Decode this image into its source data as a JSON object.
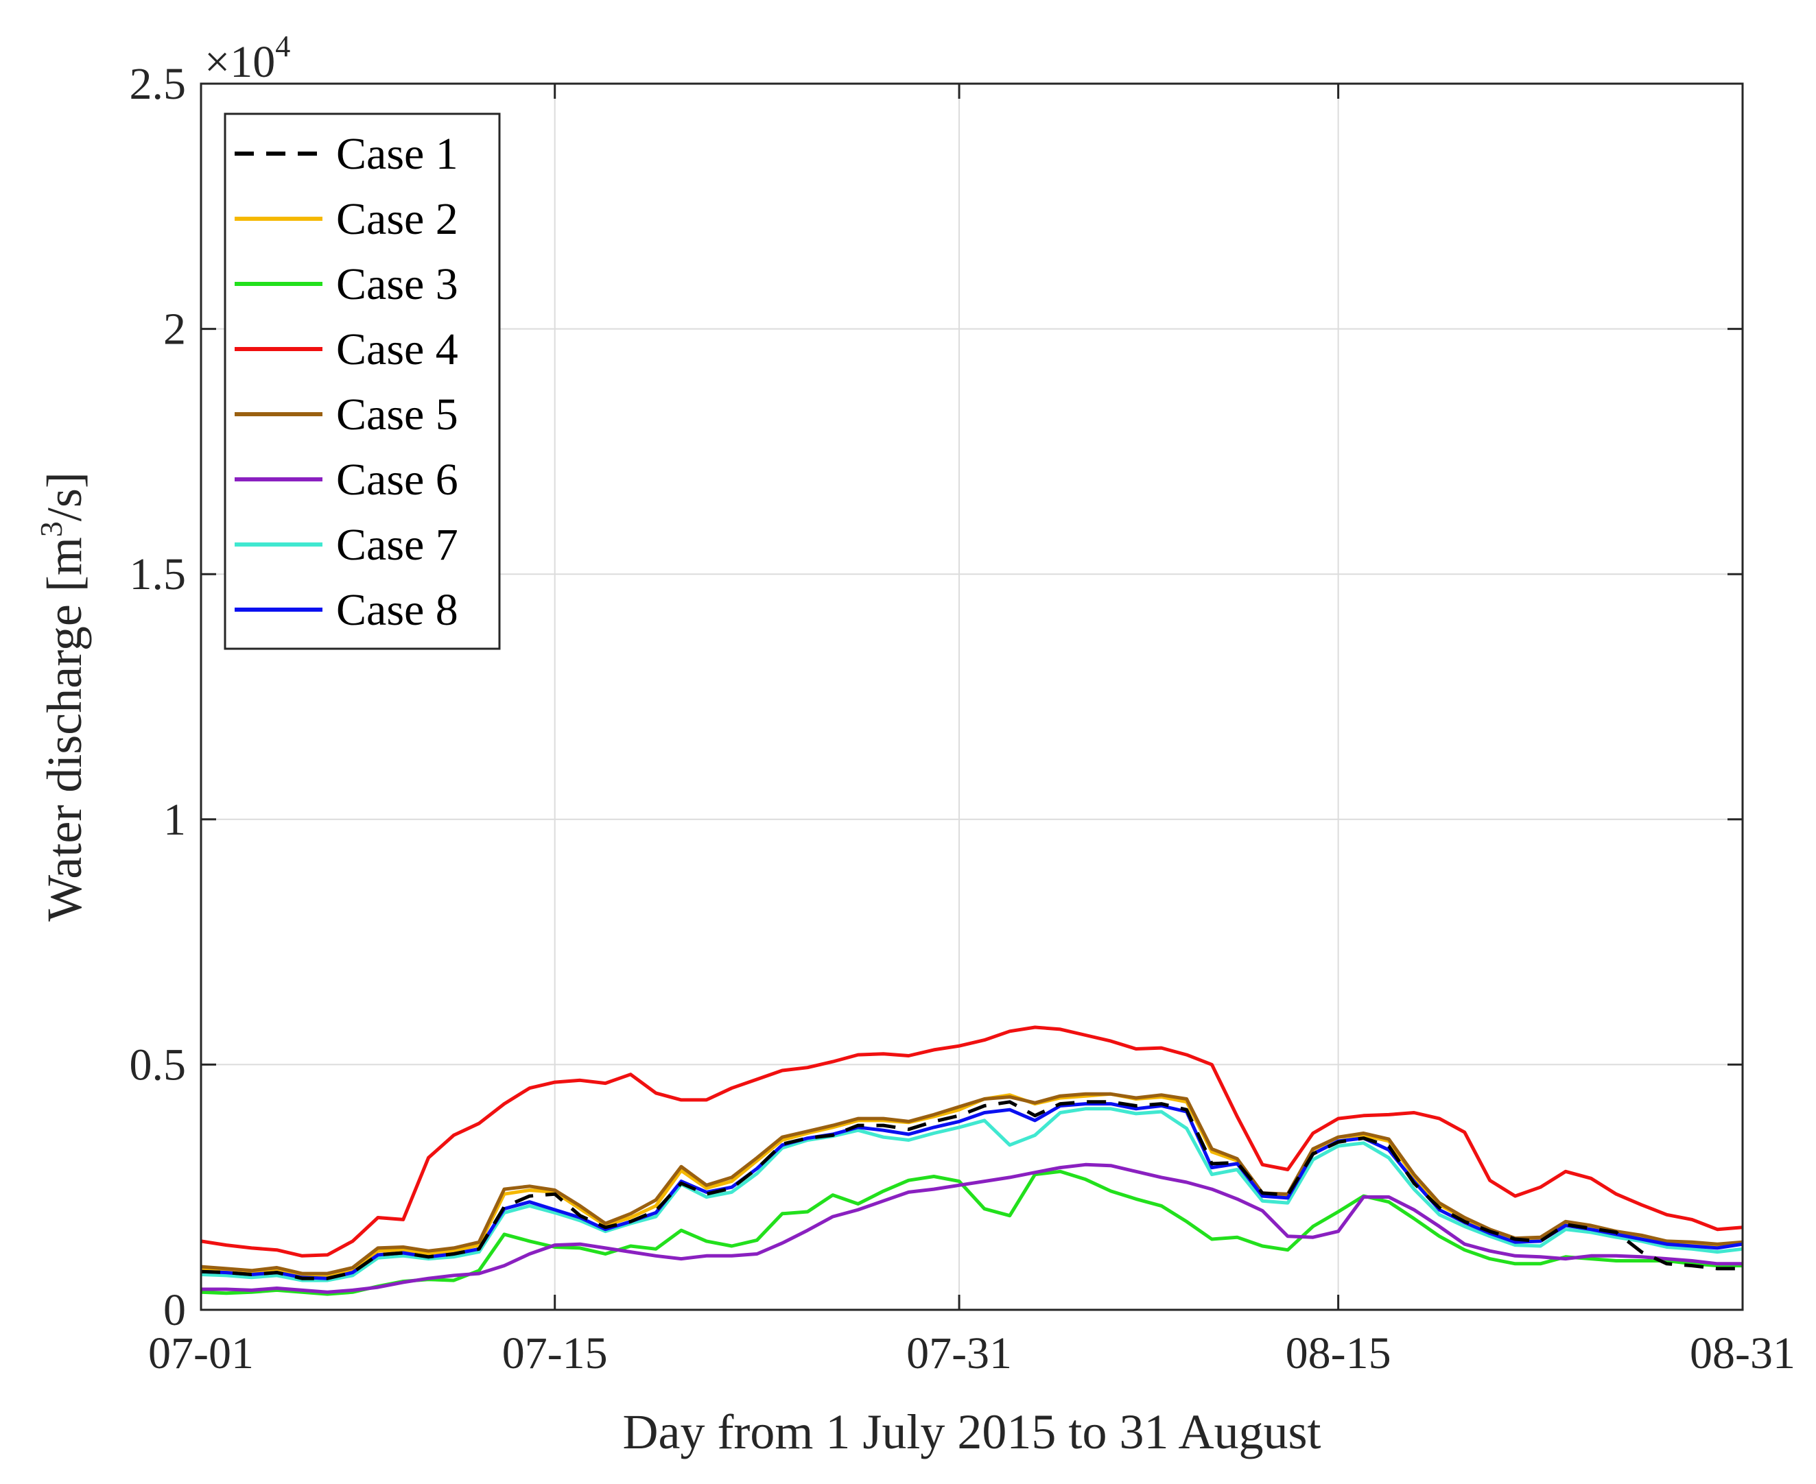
{
  "chart_data": {
    "type": "line",
    "title": "",
    "xlabel": "Day from 1 July 2015 to 31 August",
    "ylabel_main": "Water discharge [m",
    "ylabel_sup": "3",
    "ylabel_tail": "/s]",
    "y_exponent_base": "×10",
    "y_exponent_power": "4",
    "x_range_days": [
      0,
      61
    ],
    "xlim": [
      "07-01",
      "08-31"
    ],
    "ylim": [
      0,
      2.5
    ],
    "x_ticks": [
      {
        "day": 0,
        "label": "07-01"
      },
      {
        "day": 14,
        "label": "07-15"
      },
      {
        "day": 30,
        "label": "07-31"
      },
      {
        "day": 45,
        "label": "08-15"
      },
      {
        "day": 61,
        "label": "08-31"
      }
    ],
    "y_ticks": [
      {
        "value": 0,
        "label": "0"
      },
      {
        "value": 0.5,
        "label": "0.5"
      },
      {
        "value": 1,
        "label": "1"
      },
      {
        "value": 1.5,
        "label": "1.5"
      },
      {
        "value": 2,
        "label": "2"
      },
      {
        "value": 2.5,
        "label": "2.5"
      }
    ],
    "grid": true,
    "legend_position": "top-left",
    "series": [
      {
        "name": "Case 1",
        "color": "#000000",
        "dash": true,
        "values": [
          0.078,
          0.076,
          0.072,
          0.076,
          0.064,
          0.064,
          0.076,
          0.112,
          0.116,
          0.108,
          0.114,
          0.124,
          0.21,
          0.232,
          0.236,
          0.192,
          0.168,
          0.18,
          0.202,
          0.258,
          0.236,
          0.248,
          0.288,
          0.338,
          0.35,
          0.356,
          0.376,
          0.376,
          0.368,
          0.384,
          0.396,
          0.416,
          0.424,
          0.396,
          0.42,
          0.424,
          0.424,
          0.416,
          0.42,
          0.408,
          0.298,
          0.3,
          0.238,
          0.234,
          0.318,
          0.342,
          0.35,
          0.334,
          0.258,
          0.208,
          0.18,
          0.16,
          0.144,
          0.14,
          0.174,
          0.166,
          0.158,
          0.118,
          0.094,
          0.09,
          0.084,
          0.084
        ]
      },
      {
        "name": "Case 2",
        "color": "#f5b800",
        "dash": false,
        "values": [
          0.084,
          0.082,
          0.078,
          0.082,
          0.07,
          0.07,
          0.082,
          0.12,
          0.122,
          0.114,
          0.12,
          0.132,
          0.236,
          0.244,
          0.24,
          0.206,
          0.172,
          0.188,
          0.212,
          0.284,
          0.248,
          0.262,
          0.304,
          0.346,
          0.36,
          0.372,
          0.386,
          0.386,
          0.382,
          0.394,
          0.408,
          0.43,
          0.438,
          0.42,
          0.432,
          0.436,
          0.44,
          0.43,
          0.434,
          0.424,
          0.322,
          0.304,
          0.236,
          0.232,
          0.326,
          0.352,
          0.356,
          0.344,
          0.272,
          0.214,
          0.186,
          0.162,
          0.144,
          0.146,
          0.178,
          0.17,
          0.16,
          0.15,
          0.138,
          0.136,
          0.13,
          0.136
        ]
      },
      {
        "name": "Case 3",
        "color": "#22e01c",
        "dash": false,
        "values": [
          0.036,
          0.034,
          0.036,
          0.04,
          0.036,
          0.032,
          0.036,
          0.048,
          0.058,
          0.062,
          0.06,
          0.08,
          0.154,
          0.14,
          0.128,
          0.126,
          0.114,
          0.13,
          0.124,
          0.162,
          0.14,
          0.13,
          0.142,
          0.196,
          0.2,
          0.234,
          0.216,
          0.242,
          0.264,
          0.272,
          0.262,
          0.206,
          0.192,
          0.276,
          0.282,
          0.266,
          0.242,
          0.226,
          0.212,
          0.18,
          0.144,
          0.148,
          0.13,
          0.122,
          0.17,
          0.2,
          0.232,
          0.22,
          0.186,
          0.15,
          0.122,
          0.104,
          0.094,
          0.094,
          0.108,
          0.104,
          0.1,
          0.1,
          0.1,
          0.094,
          0.09,
          0.09
        ]
      },
      {
        "name": "Case 4",
        "color": "#f01010",
        "dash": false,
        "values": [
          0.14,
          0.132,
          0.126,
          0.122,
          0.11,
          0.112,
          0.14,
          0.188,
          0.184,
          0.31,
          0.356,
          0.38,
          0.42,
          0.452,
          0.464,
          0.468,
          0.462,
          0.48,
          0.442,
          0.428,
          0.428,
          0.452,
          0.47,
          0.488,
          0.494,
          0.506,
          0.52,
          0.522,
          0.518,
          0.53,
          0.538,
          0.55,
          0.568,
          0.576,
          0.572,
          0.56,
          0.548,
          0.532,
          0.534,
          0.52,
          0.5,
          0.394,
          0.296,
          0.286,
          0.36,
          0.39,
          0.396,
          0.398,
          0.402,
          0.39,
          0.362,
          0.264,
          0.232,
          0.25,
          0.282,
          0.268,
          0.236,
          0.214,
          0.194,
          0.184,
          0.164,
          0.168
        ]
      },
      {
        "name": "Case 5",
        "color": "#9a6010",
        "dash": false,
        "values": [
          0.088,
          0.084,
          0.08,
          0.086,
          0.074,
          0.074,
          0.086,
          0.126,
          0.128,
          0.12,
          0.126,
          0.138,
          0.246,
          0.252,
          0.244,
          0.212,
          0.176,
          0.196,
          0.224,
          0.292,
          0.254,
          0.27,
          0.31,
          0.352,
          0.364,
          0.376,
          0.39,
          0.39,
          0.384,
          0.398,
          0.414,
          0.43,
          0.434,
          0.422,
          0.436,
          0.44,
          0.44,
          0.432,
          0.438,
          0.43,
          0.328,
          0.308,
          0.238,
          0.236,
          0.328,
          0.352,
          0.36,
          0.348,
          0.276,
          0.218,
          0.188,
          0.164,
          0.146,
          0.148,
          0.18,
          0.172,
          0.16,
          0.152,
          0.14,
          0.138,
          0.134,
          0.138
        ]
      },
      {
        "name": "Case 6",
        "color": "#8a20c0",
        "dash": false,
        "values": [
          0.042,
          0.042,
          0.04,
          0.044,
          0.04,
          0.036,
          0.04,
          0.046,
          0.056,
          0.064,
          0.07,
          0.074,
          0.09,
          0.114,
          0.132,
          0.134,
          0.126,
          0.118,
          0.11,
          0.104,
          0.11,
          0.11,
          0.114,
          0.136,
          0.162,
          0.19,
          0.204,
          0.222,
          0.24,
          0.246,
          0.254,
          0.262,
          0.27,
          0.28,
          0.29,
          0.296,
          0.294,
          0.282,
          0.27,
          0.26,
          0.246,
          0.226,
          0.202,
          0.15,
          0.148,
          0.16,
          0.23,
          0.23,
          0.204,
          0.17,
          0.134,
          0.12,
          0.11,
          0.108,
          0.104,
          0.11,
          0.11,
          0.108,
          0.104,
          0.1,
          0.094,
          0.094
        ]
      },
      {
        "name": "Case 7",
        "color": "#40e8d0",
        "dash": false,
        "values": [
          0.072,
          0.07,
          0.066,
          0.07,
          0.06,
          0.06,
          0.07,
          0.106,
          0.11,
          0.104,
          0.108,
          0.118,
          0.198,
          0.212,
          0.198,
          0.182,
          0.16,
          0.176,
          0.19,
          0.256,
          0.23,
          0.24,
          0.278,
          0.33,
          0.346,
          0.354,
          0.366,
          0.352,
          0.346,
          0.36,
          0.372,
          0.386,
          0.336,
          0.356,
          0.402,
          0.41,
          0.41,
          0.4,
          0.404,
          0.37,
          0.276,
          0.286,
          0.222,
          0.218,
          0.306,
          0.334,
          0.34,
          0.31,
          0.246,
          0.194,
          0.17,
          0.15,
          0.132,
          0.13,
          0.164,
          0.158,
          0.148,
          0.14,
          0.128,
          0.124,
          0.118,
          0.124
        ]
      },
      {
        "name": "Case 8",
        "color": "#0a10f0",
        "dash": false,
        "values": [
          0.078,
          0.076,
          0.072,
          0.076,
          0.066,
          0.064,
          0.076,
          0.112,
          0.116,
          0.108,
          0.114,
          0.124,
          0.206,
          0.22,
          0.204,
          0.188,
          0.164,
          0.18,
          0.198,
          0.262,
          0.24,
          0.25,
          0.288,
          0.336,
          0.35,
          0.358,
          0.372,
          0.366,
          0.358,
          0.372,
          0.384,
          0.402,
          0.408,
          0.386,
          0.416,
          0.42,
          0.42,
          0.41,
          0.416,
          0.404,
          0.29,
          0.298,
          0.232,
          0.228,
          0.318,
          0.344,
          0.35,
          0.326,
          0.262,
          0.204,
          0.178,
          0.156,
          0.138,
          0.14,
          0.172,
          0.164,
          0.154,
          0.144,
          0.134,
          0.13,
          0.126,
          0.134
        ]
      }
    ]
  }
}
